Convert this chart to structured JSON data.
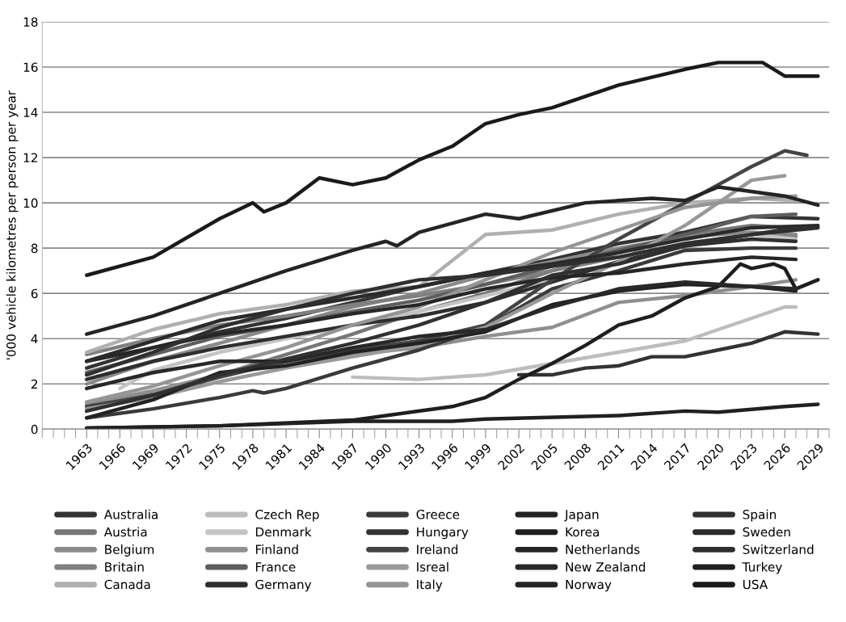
{
  "chart_data": {
    "type": "line",
    "ylabel": "'000 vehicle kilometres per person per year",
    "xlim": [
      1959,
      2030
    ],
    "xticks": [
      1963,
      1966,
      1969,
      1972,
      1975,
      1978,
      1981,
      1984,
      1987,
      1990,
      1993,
      1996,
      1999,
      2002,
      2005,
      2008,
      2011,
      2014,
      2017,
      2020,
      2023,
      2026,
      2029
    ],
    "ylim": [
      0,
      18
    ],
    "yticks": [
      0,
      2,
      4,
      6,
      8,
      10,
      12,
      14,
      16,
      18
    ],
    "grid": "y",
    "legend": "bottom",
    "marker": "none",
    "line_style": "solid",
    "series": [
      {
        "name": "Australia",
        "color": "#333333",
        "x": [
          1963,
          1969,
          1975,
          1981,
          1987,
          1993,
          1999,
          2005,
          2011,
          2017,
          2023,
          2029
        ],
        "values": [
          2.7,
          3.6,
          4.3,
          4.9,
          5.6,
          6.3,
          6.9,
          7.5,
          8.2,
          8.7,
          9.4,
          9.3
        ]
      },
      {
        "name": "Austria",
        "color": "#777777",
        "x": [
          1963,
          1969,
          1975,
          1981,
          1987,
          1993,
          1999,
          2005,
          2011,
          2017,
          2023,
          2027
        ],
        "values": [
          1.0,
          1.6,
          2.4,
          3.3,
          4.2,
          5.2,
          6.0,
          7.0,
          7.8,
          8.6,
          9.0,
          8.9
        ]
      },
      {
        "name": "Belgium",
        "color": "#8a8a8a",
        "x": [
          1963,
          1969,
          1975,
          1981,
          1987,
          1993,
          1999,
          2005,
          2011,
          2017,
          2023,
          2027
        ],
        "values": [
          2.0,
          3.0,
          3.8,
          4.6,
          5.4,
          6.0,
          6.8,
          7.4,
          8.0,
          8.5,
          8.7,
          8.6
        ]
      },
      {
        "name": "Britain",
        "color": "#808080",
        "x": [
          1963,
          1969,
          1975,
          1981,
          1987,
          1993,
          1999,
          2005,
          2011,
          2017,
          2023,
          2027
        ],
        "values": [
          3.3,
          4.0,
          4.6,
          5.0,
          5.5,
          5.9,
          6.4,
          7.0,
          7.6,
          8.2,
          8.6,
          8.5
        ]
      },
      {
        "name": "Canada",
        "color": "#b0b0b0",
        "x": [
          1963,
          1969,
          1975,
          1981,
          1987,
          1993,
          1999,
          2005,
          2011,
          2017,
          2023,
          2027
        ],
        "values": [
          3.4,
          4.4,
          5.1,
          5.5,
          6.1,
          6.3,
          8.6,
          8.8,
          9.5,
          10.0,
          10.2,
          10.1
        ]
      },
      {
        "name": "Czech Rep",
        "color": "#bdbdbd",
        "x": [
          1987,
          1993,
          1999,
          2005,
          2011,
          2017,
          2020,
          2023,
          2026,
          2027
        ],
        "values": [
          2.3,
          2.2,
          2.4,
          2.9,
          3.4,
          3.9,
          4.4,
          4.9,
          5.4,
          5.4
        ]
      },
      {
        "name": "Denmark",
        "color": "#c4c4c4",
        "x": [
          1966,
          1969,
          1975,
          1981,
          1987,
          1993,
          1999,
          2005,
          2011,
          2017,
          2023,
          2027
        ],
        "values": [
          1.8,
          2.6,
          3.4,
          4.0,
          4.6,
          5.2,
          5.9,
          6.6,
          7.4,
          8.2,
          8.6,
          8.4
        ]
      },
      {
        "name": "Finland",
        "color": "#8f8f8f",
        "x": [
          1963,
          1969,
          1975,
          1981,
          1987,
          1993,
          1999,
          2005,
          2011,
          2017,
          2023,
          2027
        ],
        "values": [
          1.1,
          1.7,
          2.4,
          2.9,
          3.3,
          3.6,
          4.1,
          4.5,
          5.6,
          5.9,
          6.3,
          6.6
        ]
      },
      {
        "name": "France",
        "color": "#5e5e5e",
        "x": [
          1963,
          1969,
          1975,
          1981,
          1987,
          1993,
          1999,
          2005,
          2011,
          2017,
          2023,
          2027
        ],
        "values": [
          2.5,
          3.3,
          4.1,
          4.6,
          5.2,
          5.7,
          6.4,
          7.2,
          7.9,
          8.6,
          9.4,
          9.5
        ]
      },
      {
        "name": "Germany",
        "color": "#2e2e2e",
        "x": [
          1963,
          1969,
          1975,
          1981,
          1987,
          1993,
          1999,
          2005,
          2011,
          2017,
          2023,
          2029
        ],
        "values": [
          2.2,
          3.0,
          3.6,
          4.1,
          4.6,
          5.0,
          5.6,
          6.5,
          7.4,
          8.1,
          8.6,
          8.9
        ]
      },
      {
        "name": "Greece",
        "color": "#3a3a3a",
        "x": [
          1963,
          1969,
          1975,
          1978,
          1979,
          1981,
          1987,
          1993,
          1999,
          2005,
          2011,
          2017,
          2023,
          2027
        ],
        "values": [
          0.5,
          0.9,
          1.4,
          1.7,
          1.6,
          1.8,
          2.7,
          3.5,
          4.5,
          6.2,
          7.0,
          7.9,
          8.0,
          8.0
        ]
      },
      {
        "name": "Hungary",
        "color": "#333333",
        "x": [
          2002,
          2005,
          2008,
          2011,
          2014,
          2017,
          2020,
          2023,
          2026,
          2029
        ],
        "values": [
          2.4,
          2.4,
          2.7,
          2.8,
          3.2,
          3.2,
          3.5,
          3.8,
          4.3,
          4.2
        ]
      },
      {
        "name": "Ireland",
        "color": "#444444",
        "x": [
          1963,
          1969,
          1975,
          1981,
          1987,
          1993,
          1999,
          2005,
          2011,
          2017,
          2023,
          2026,
          2028
        ],
        "values": [
          1.0,
          1.5,
          2.3,
          3.0,
          3.5,
          3.9,
          4.6,
          6.6,
          8.4,
          10.0,
          11.6,
          12.3,
          12.1
        ]
      },
      {
        "name": "Isreal",
        "color": "#999999",
        "x": [
          1963,
          1969,
          1975,
          1981,
          1987,
          1993,
          1999,
          2005,
          2011,
          2017,
          2023,
          2026
        ],
        "values": [
          0.9,
          1.4,
          2.1,
          2.7,
          3.2,
          3.7,
          4.5,
          6.0,
          7.4,
          9.0,
          11.0,
          11.2
        ]
      },
      {
        "name": "Italy",
        "color": "#959595",
        "x": [
          1963,
          1969,
          1975,
          1981,
          1987,
          1993,
          1999,
          2005,
          2011,
          2017,
          2023,
          2027
        ],
        "values": [
          1.2,
          1.9,
          2.8,
          3.6,
          4.6,
          5.4,
          6.6,
          7.8,
          8.8,
          9.8,
          10.2,
          10.3
        ]
      },
      {
        "name": "Japan",
        "color": "#222222",
        "x": [
          1963,
          1969,
          1975,
          1981,
          1987,
          1993,
          1999,
          2005,
          2011,
          2017,
          2023,
          2027
        ],
        "values": [
          0.5,
          1.3,
          2.5,
          2.8,
          3.4,
          3.8,
          4.3,
          5.5,
          6.1,
          6.4,
          6.3,
          6.1
        ]
      },
      {
        "name": "Korea",
        "color": "#1e1e1e",
        "x": [
          1963,
          1975,
          1987,
          1990,
          1996,
          1999,
          2002,
          2005,
          2008,
          2011,
          2014,
          2017,
          2020,
          2022,
          2023,
          2025,
          2026,
          2027,
          2029
        ],
        "values": [
          0.05,
          0.15,
          0.4,
          0.6,
          1.0,
          1.4,
          2.2,
          2.9,
          3.7,
          4.6,
          5.0,
          5.8,
          6.3,
          7.3,
          7.1,
          7.3,
          7.1,
          6.2,
          6.6
        ]
      },
      {
        "name": "Netherlands",
        "color": "#262626",
        "x": [
          1963,
          1969,
          1975,
          1981,
          1987,
          1993,
          1999,
          2005,
          2011,
          2017,
          2023,
          2027
        ],
        "values": [
          3.0,
          3.6,
          4.2,
          4.6,
          5.1,
          5.5,
          6.2,
          6.7,
          6.9,
          7.3,
          7.6,
          7.5
        ]
      },
      {
        "name": "New Zealand",
        "color": "#282828",
        "x": [
          1963,
          1969,
          1975,
          1981,
          1987,
          1993,
          1999,
          2005,
          2011,
          2017,
          2023,
          2027
        ],
        "values": [
          1.8,
          2.5,
          3.0,
          3.0,
          3.6,
          4.1,
          4.4,
          5.4,
          6.2,
          6.5,
          6.3,
          6.2
        ]
      },
      {
        "name": "Norway",
        "color": "#242424",
        "x": [
          1963,
          1969,
          1975,
          1981,
          1987,
          1990,
          1991,
          1993,
          1999,
          2002,
          2008,
          2014,
          2017,
          2020,
          2026,
          2029
        ],
        "values": [
          4.2,
          5.0,
          6.0,
          7.0,
          7.9,
          8.3,
          8.1,
          8.7,
          9.5,
          9.3,
          10.0,
          10.2,
          10.1,
          10.7,
          10.3,
          9.9
        ]
      },
      {
        "name": "Spain",
        "color": "#303030",
        "x": [
          1963,
          1969,
          1975,
          1981,
          1987,
          1993,
          1999,
          2005,
          2011,
          2017,
          2023,
          2027
        ],
        "values": [
          0.8,
          1.5,
          2.4,
          3.1,
          3.8,
          4.6,
          5.6,
          6.8,
          7.3,
          8.1,
          8.4,
          8.3
        ]
      },
      {
        "name": "Sweden",
        "color": "#2a2a2a",
        "x": [
          1963,
          1969,
          1975,
          1981,
          1987,
          1993,
          1999,
          2005,
          2011,
          2017,
          2023,
          2029
        ],
        "values": [
          3.0,
          3.9,
          4.8,
          5.3,
          5.8,
          6.3,
          6.9,
          7.3,
          7.8,
          8.4,
          8.9,
          9.0
        ]
      },
      {
        "name": "Switzerland",
        "color": "#2f2f2f",
        "x": [
          1963,
          1969,
          1975,
          1981,
          1987,
          1993,
          1999,
          2005,
          2011,
          2017,
          2023,
          2027
        ],
        "values": [
          2.4,
          3.4,
          4.5,
          5.3,
          6.0,
          6.6,
          6.8,
          7.2,
          7.6,
          8.2,
          8.6,
          8.9
        ]
      },
      {
        "name": "Turkey",
        "color": "#202020",
        "x": [
          1963,
          1975,
          1987,
          1996,
          1999,
          2011,
          2017,
          2020,
          2026,
          2029
        ],
        "values": [
          0.05,
          0.15,
          0.35,
          0.35,
          0.45,
          0.6,
          0.8,
          0.75,
          1.0,
          1.1
        ]
      },
      {
        "name": "USA",
        "color": "#1a1a1a",
        "x": [
          1963,
          1969,
          1975,
          1978,
          1979,
          1981,
          1984,
          1987,
          1990,
          1993,
          1996,
          1999,
          2002,
          2005,
          2011,
          2017,
          2020,
          2024,
          2026,
          2029
        ],
        "values": [
          6.8,
          7.6,
          9.3,
          10.0,
          9.6,
          10.0,
          11.1,
          10.8,
          11.1,
          11.9,
          12.5,
          13.5,
          13.9,
          14.2,
          15.2,
          15.9,
          16.2,
          16.2,
          15.6,
          15.6
        ]
      }
    ]
  }
}
